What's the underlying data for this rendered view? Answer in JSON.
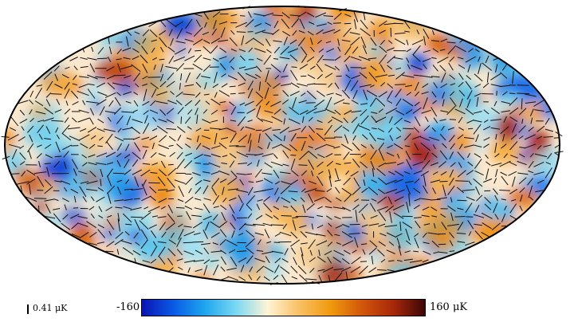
{
  "map": {
    "projection": "mollweide",
    "field": "temperature",
    "overlay": "polarization-headless-vectors"
  },
  "legend": {
    "polarization_scale_label": "0.41 μK",
    "colorbar_min_label": "-160",
    "colorbar_max_label": "160 μK",
    "colorbar_min": -160,
    "colorbar_max": 160,
    "colormap": [
      "#0a14b4",
      "#0a5ae6",
      "#1ea6ee",
      "#7ad8f2",
      "#fff4d6",
      "#f9c063",
      "#f09a0c",
      "#d2560a",
      "#a8280a",
      "#3c0606"
    ]
  },
  "colors": {
    "outline": "#000000",
    "vectors": "#000000",
    "background": "#ffffff"
  }
}
